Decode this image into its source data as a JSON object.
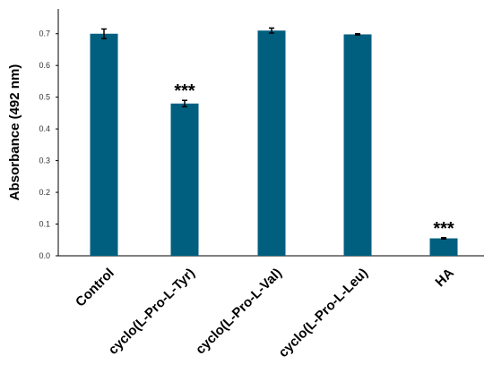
{
  "chart_data": {
    "type": "bar",
    "categories": [
      "Control",
      "cyclo(L-Pro-L-Tyr)",
      "cyclo(L-Pro-L-Val)",
      "cyclo(L-Pro-L-Leu)",
      "HA"
    ],
    "values": [
      0.7,
      0.48,
      0.71,
      0.698,
      0.055
    ],
    "errors": [
      0.015,
      0.01,
      0.008,
      0.002,
      0.002
    ],
    "annotations": [
      "",
      "***",
      "",
      "",
      "***"
    ],
    "title": "",
    "xlabel": "",
    "ylabel": "Absorbance (492 nm)",
    "ylim": [
      0,
      0.75
    ],
    "yticks": [
      "0.0",
      "0.1",
      "0.2",
      "0.3",
      "0.4",
      "0.5",
      "0.6",
      "0.7"
    ],
    "grid": false,
    "legend": "none",
    "bar_color": "#005f7f"
  }
}
